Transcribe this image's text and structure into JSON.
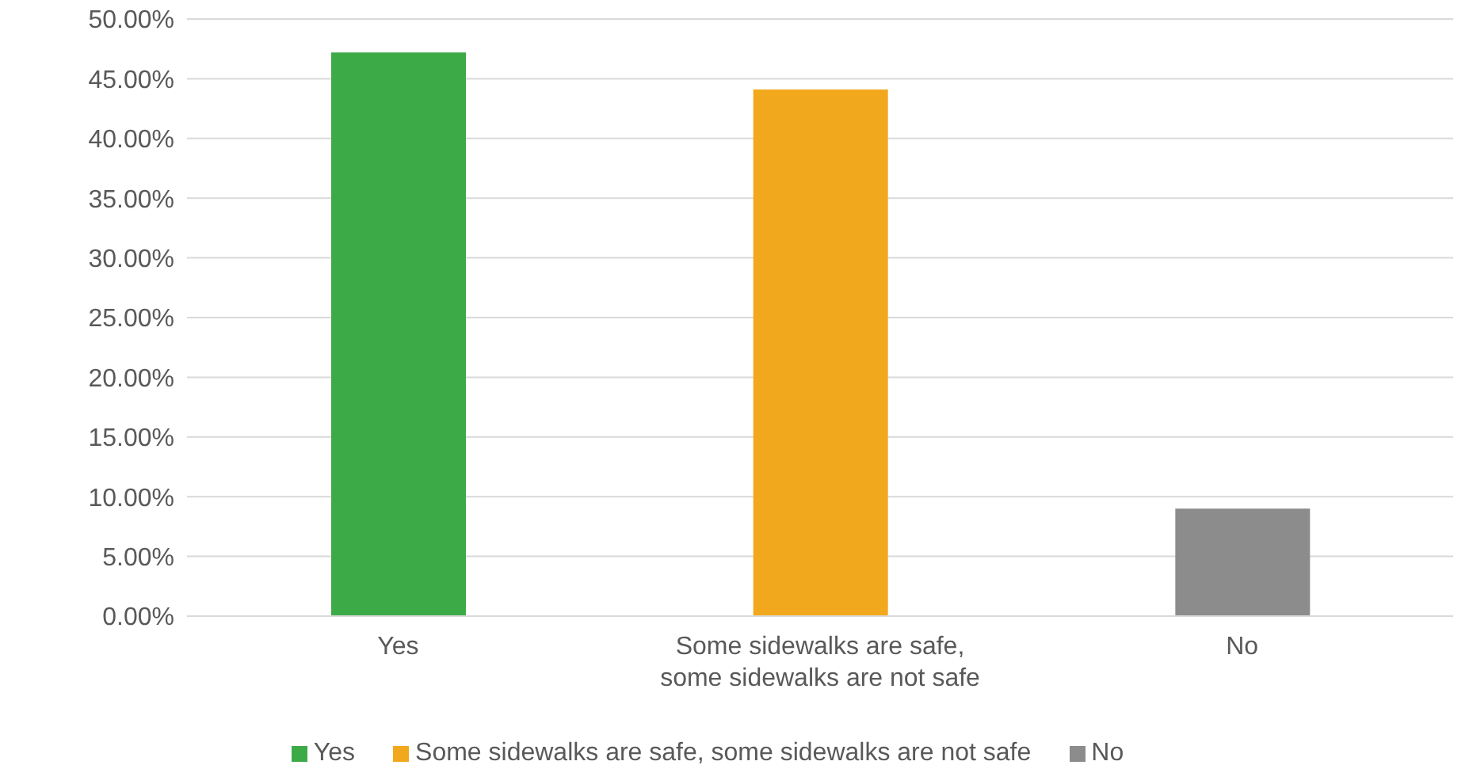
{
  "chart_data": {
    "type": "bar",
    "categories": [
      "Yes",
      "Some sidewalks are safe, some sidewalks are not safe",
      "No"
    ],
    "series": [
      {
        "name": "Yes",
        "color": "#3daa48",
        "values": [
          47.2,
          null,
          null
        ]
      },
      {
        "name": "Some sidewalks are safe, some sidewalks are not safe",
        "color": "#f2a81d",
        "values": [
          null,
          44.1,
          null
        ]
      },
      {
        "name": "No",
        "color": "#8c8c8c",
        "values": [
          null,
          null,
          9.0
        ]
      }
    ],
    "stacked": true,
    "ylim": [
      0,
      50
    ],
    "yticks": [
      {
        "value": 0,
        "label": "0.00%"
      },
      {
        "value": 5,
        "label": "5.00%"
      },
      {
        "value": 10,
        "label": "10.00%"
      },
      {
        "value": 15,
        "label": "15.00%"
      },
      {
        "value": 20,
        "label": "20.00%"
      },
      {
        "value": 25,
        "label": "25.00%"
      },
      {
        "value": 30,
        "label": "30.00%"
      },
      {
        "value": 35,
        "label": "35.00%"
      },
      {
        "value": 40,
        "label": "40.00%"
      },
      {
        "value": 45,
        "label": "45.00%"
      },
      {
        "value": 50,
        "label": "50.00%"
      }
    ],
    "grid": "y",
    "legend": "bottom"
  }
}
